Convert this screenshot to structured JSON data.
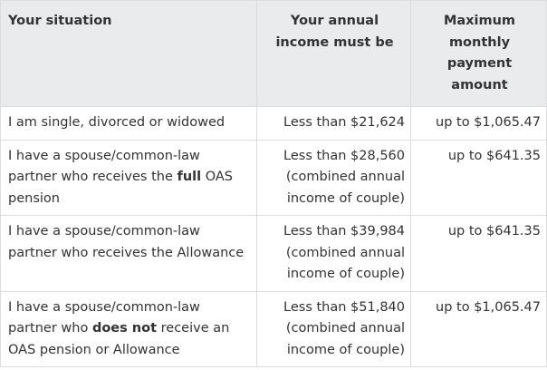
{
  "table": {
    "headers": [
      "Your situation",
      "Your annual income must be",
      "Maximum monthly payment amount"
    ],
    "rows": [
      {
        "situation": {
          "before": "I am single, divorced or widowed",
          "bold": "",
          "after": ""
        },
        "income": {
          "line1": "Less than $21,624",
          "line2": ""
        },
        "payment": "up to $1,065.47"
      },
      {
        "situation": {
          "before": "I have a spouse/common-law partner who receives the ",
          "bold": "full",
          "after": " OAS pension"
        },
        "income": {
          "line1": "Less than $28,560",
          "line2": "(combined annual income of couple)"
        },
        "payment": "up to $641.35"
      },
      {
        "situation": {
          "before": "I have a spouse/common-law partner who receives the Allowance",
          "bold": "",
          "after": ""
        },
        "income": {
          "line1": "Less than $39,984",
          "line2": "(combined annual income of couple)"
        },
        "payment": "up to $641.35"
      },
      {
        "situation": {
          "before": "I have a spouse/common-law partner who ",
          "bold": "does not",
          "after": " receive an OAS pension or Allowance"
        },
        "income": {
          "line1": "Less than $51,840",
          "line2": "(combined annual income of couple)"
        },
        "payment": "up to $1,065.47"
      }
    ]
  }
}
